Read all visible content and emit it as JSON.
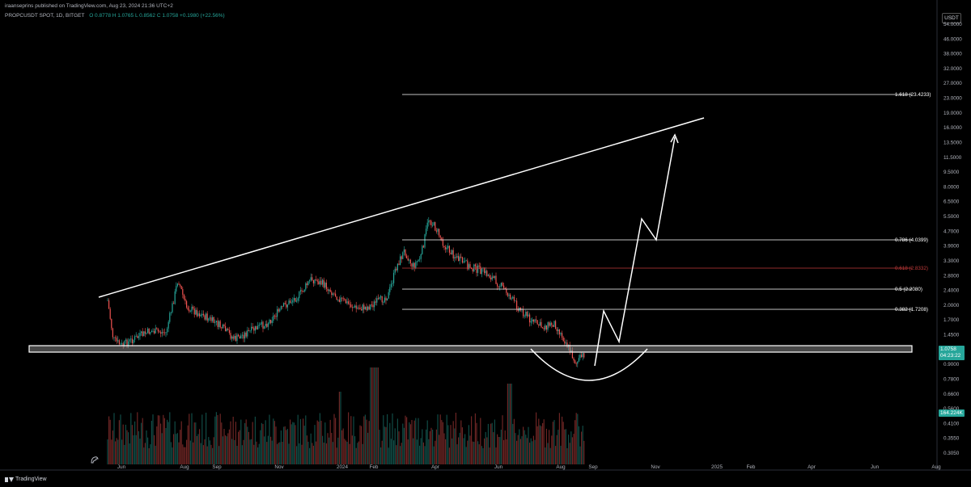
{
  "header": {
    "publisher": "iraanseprins published on TradingView.com, Aug 23, 2024 21:36 UTC+2"
  },
  "symbol": {
    "name": "PROPCUSDT SPOT, 1D, BITGET",
    "open": "O 0.8778",
    "high": "H 1.0765",
    "low": "L 0.8562",
    "close": "C 1.0758",
    "change": "+0.1980 (+22.56%)"
  },
  "currency": "USDT",
  "price_axis": {
    "labels": [
      "54.0000",
      "46.0000",
      "38.0000",
      "32.0000",
      "27.0000",
      "23.0000",
      "19.0000",
      "16.0000",
      "13.5000",
      "11.5000",
      "9.5000",
      "8.0000",
      "6.5000",
      "5.5000",
      "4.7000",
      "3.9000",
      "3.3000",
      "2.8000",
      "2.4000",
      "2.0000",
      "1.7000",
      "1.4500",
      "1.2500",
      "0.9000",
      "0.7800",
      "0.6600",
      "0.5600",
      "0.4100",
      "0.3550",
      "0.3050"
    ]
  },
  "time_axis": {
    "labels": [
      "Jun",
      "Aug",
      "Sep",
      "Nov",
      "2024",
      "Feb",
      "Apr",
      "Jun",
      "Aug",
      "Sep",
      "Nov",
      "2025",
      "Feb",
      "Apr",
      "Jun",
      "Aug"
    ]
  },
  "fib_levels": [
    {
      "label": "1.618 (23.4233)",
      "color": "#ffffff"
    },
    {
      "label": "0.786 (4.0399)",
      "color": "#ffffff"
    },
    {
      "label": "0.618 (2.8332)",
      "color": "#c23a3a"
    },
    {
      "label": "0.5 (2.2080)",
      "color": "#ffffff"
    },
    {
      "label": "0.382 (1.7208)",
      "color": "#ffffff"
    }
  ],
  "current_price": {
    "price": "1.0758",
    "countdown": "04:23:22",
    "color": "#26a69a"
  },
  "volume_tag": "164.224K",
  "footer": {
    "brand": "TradingView"
  },
  "colors": {
    "up": "#26a69a",
    "down": "#ef5350",
    "background": "#000000",
    "drawing": "#ffffff"
  },
  "icons": [
    "replay-icon",
    "tradingview-logo-icon"
  ]
}
